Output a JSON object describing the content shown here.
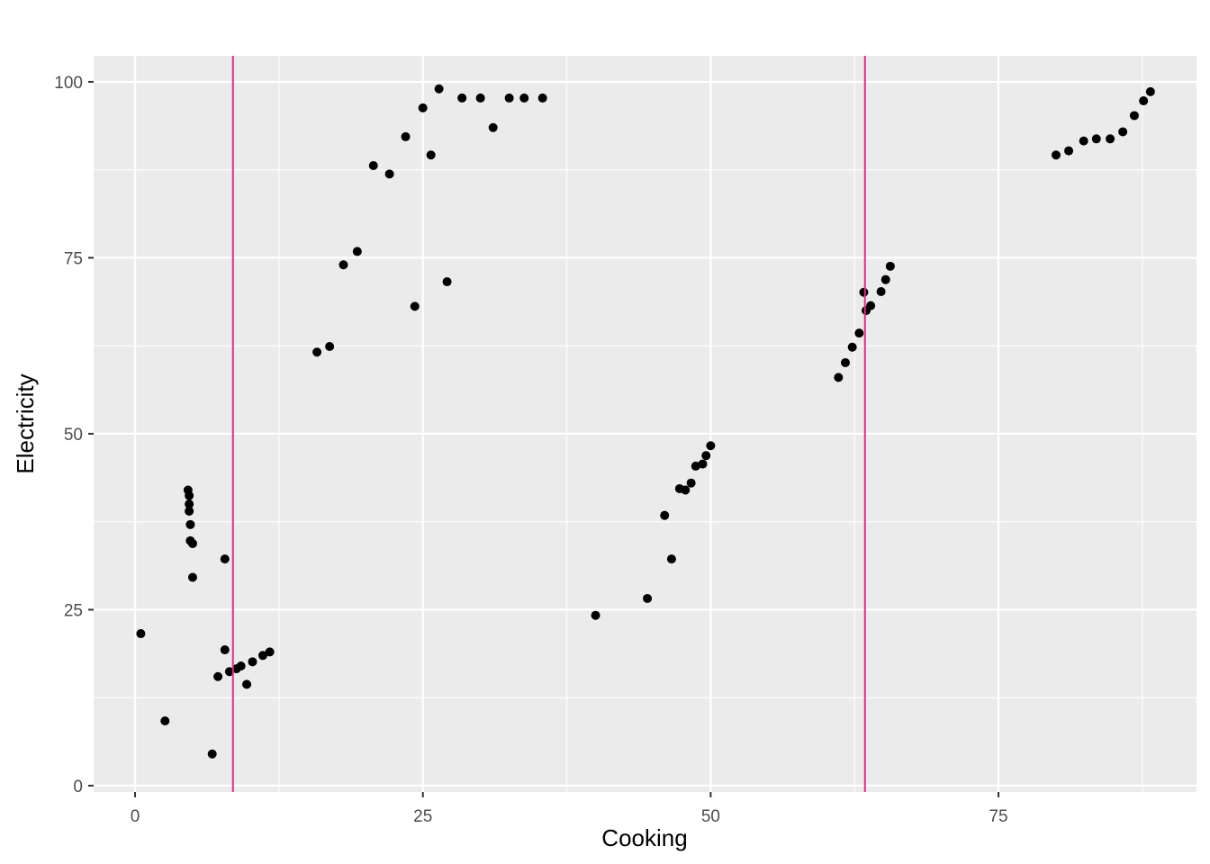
{
  "chart_data": {
    "type": "scatter",
    "xlabel": "Cooking",
    "ylabel": "Electricity",
    "xlim": [
      -3.6,
      92.2
    ],
    "ylim": [
      -0.9,
      103.7
    ],
    "x_ticks": [
      0,
      25,
      50,
      75
    ],
    "y_ticks": [
      0,
      25,
      50,
      75,
      100
    ],
    "x_tick_labels": [
      "0",
      "25",
      "50",
      "75"
    ],
    "y_tick_labels": [
      "0",
      "25",
      "50",
      "75",
      "100"
    ],
    "grid": true,
    "legend": "none",
    "vlines": [
      8.5,
      63.4
    ],
    "colors": {
      "panel": "#ebebeb",
      "grid": "#ffffff",
      "points": "#000000",
      "vline": "#e7298a"
    },
    "series": [
      {
        "points": [
          {
            "x": 0.5,
            "y": 21.6
          },
          {
            "x": 2.6,
            "y": 9.2
          },
          {
            "x": 4.6,
            "y": 42.0
          },
          {
            "x": 4.7,
            "y": 41.2
          },
          {
            "x": 4.7,
            "y": 40.0
          },
          {
            "x": 4.7,
            "y": 39.0
          },
          {
            "x": 4.8,
            "y": 37.1
          },
          {
            "x": 4.8,
            "y": 34.8
          },
          {
            "x": 5.0,
            "y": 34.4
          },
          {
            "x": 5.0,
            "y": 29.6
          },
          {
            "x": 6.7,
            "y": 4.5
          },
          {
            "x": 7.2,
            "y": 15.5
          },
          {
            "x": 7.8,
            "y": 32.2
          },
          {
            "x": 7.8,
            "y": 19.3
          },
          {
            "x": 8.2,
            "y": 16.2
          },
          {
            "x": 8.8,
            "y": 16.6
          },
          {
            "x": 9.2,
            "y": 17.0
          },
          {
            "x": 9.7,
            "y": 14.4
          },
          {
            "x": 10.2,
            "y": 17.6
          },
          {
            "x": 11.1,
            "y": 18.5
          },
          {
            "x": 11.7,
            "y": 19.0
          },
          {
            "x": 15.8,
            "y": 61.6
          },
          {
            "x": 16.9,
            "y": 62.4
          },
          {
            "x": 18.1,
            "y": 74.0
          },
          {
            "x": 19.3,
            "y": 75.9
          },
          {
            "x": 20.7,
            "y": 88.1
          },
          {
            "x": 22.1,
            "y": 86.9
          },
          {
            "x": 23.5,
            "y": 92.2
          },
          {
            "x": 24.3,
            "y": 68.1
          },
          {
            "x": 25.0,
            "y": 96.3
          },
          {
            "x": 25.7,
            "y": 89.6
          },
          {
            "x": 26.4,
            "y": 99.0
          },
          {
            "x": 27.1,
            "y": 71.6
          },
          {
            "x": 28.4,
            "y": 97.7
          },
          {
            "x": 30.0,
            "y": 97.7
          },
          {
            "x": 31.1,
            "y": 93.5
          },
          {
            "x": 32.5,
            "y": 97.7
          },
          {
            "x": 33.8,
            "y": 97.7
          },
          {
            "x": 35.4,
            "y": 97.7
          },
          {
            "x": 40.0,
            "y": 24.2
          },
          {
            "x": 44.5,
            "y": 26.6
          },
          {
            "x": 46.0,
            "y": 38.4
          },
          {
            "x": 46.6,
            "y": 32.2
          },
          {
            "x": 47.3,
            "y": 42.2
          },
          {
            "x": 47.8,
            "y": 42.0
          },
          {
            "x": 48.3,
            "y": 43.0
          },
          {
            "x": 48.7,
            "y": 45.4
          },
          {
            "x": 49.3,
            "y": 45.7
          },
          {
            "x": 49.6,
            "y": 46.9
          },
          {
            "x": 50.0,
            "y": 48.3
          },
          {
            "x": 61.1,
            "y": 58.0
          },
          {
            "x": 61.7,
            "y": 60.1
          },
          {
            "x": 62.3,
            "y": 62.3
          },
          {
            "x": 62.9,
            "y": 64.3
          },
          {
            "x": 63.3,
            "y": 70.1
          },
          {
            "x": 63.5,
            "y": 67.5
          },
          {
            "x": 63.9,
            "y": 68.2
          },
          {
            "x": 64.8,
            "y": 70.2
          },
          {
            "x": 65.2,
            "y": 71.9
          },
          {
            "x": 65.6,
            "y": 73.8
          },
          {
            "x": 80.0,
            "y": 89.6
          },
          {
            "x": 81.1,
            "y": 90.2
          },
          {
            "x": 82.4,
            "y": 91.6
          },
          {
            "x": 83.5,
            "y": 91.9
          },
          {
            "x": 84.7,
            "y": 91.9
          },
          {
            "x": 85.8,
            "y": 92.9
          },
          {
            "x": 86.8,
            "y": 95.2
          },
          {
            "x": 87.6,
            "y": 97.3
          },
          {
            "x": 88.2,
            "y": 98.6
          }
        ]
      }
    ]
  }
}
